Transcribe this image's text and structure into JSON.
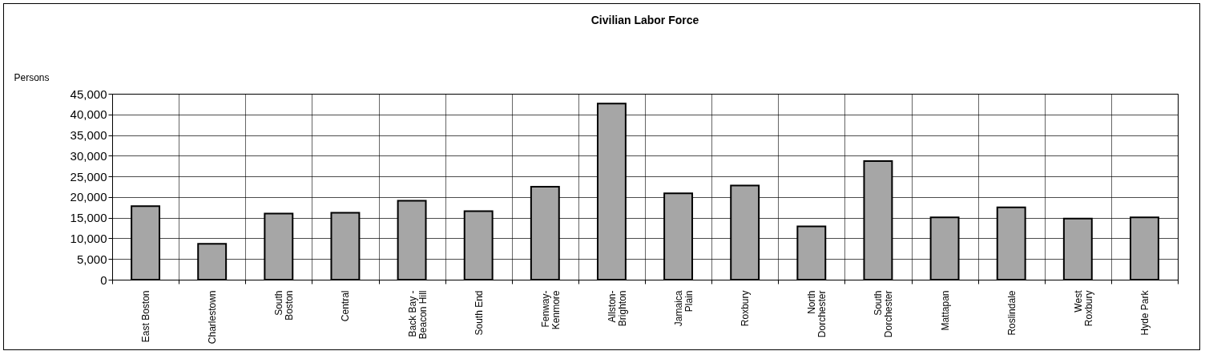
{
  "chart_data": {
    "type": "bar",
    "title": "Civilian Labor Force",
    "ylabel": "Persons",
    "categories": [
      "East Boston",
      "Charlestown",
      "South\nBoston",
      "Central",
      "Back Bay -\nBeacon Hill",
      "South End",
      "Fenway-\nKenmore",
      "Allston-\nBrighton",
      "Jamaica\nPlain",
      "Roxbury",
      "North\nDorchester",
      "South\nDorchester",
      "Mattapan",
      "Roslindale",
      "West\nRoxbury",
      "Hyde Park"
    ],
    "values": [
      17800,
      8700,
      16000,
      16200,
      19100,
      16600,
      22500,
      42600,
      20900,
      22800,
      12900,
      28700,
      15100,
      17500,
      14800,
      15100
    ],
    "color": "#a6a6a6",
    "ylim": [
      0,
      45000
    ],
    "yticks": [
      {
        "value": 0,
        "label": "0"
      },
      {
        "value": 5000,
        "label": "5,000"
      },
      {
        "value": 10000,
        "label": "10,000"
      },
      {
        "value": 15000,
        "label": "15,000"
      },
      {
        "value": 20000,
        "label": "20,000"
      },
      {
        "value": 25000,
        "label": "25,000"
      },
      {
        "value": 30000,
        "label": "30,000"
      },
      {
        "value": 35000,
        "label": "35,000"
      },
      {
        "value": 40000,
        "label": "40,000"
      },
      {
        "value": 45000,
        "label": "45,000"
      }
    ],
    "grid": true
  }
}
